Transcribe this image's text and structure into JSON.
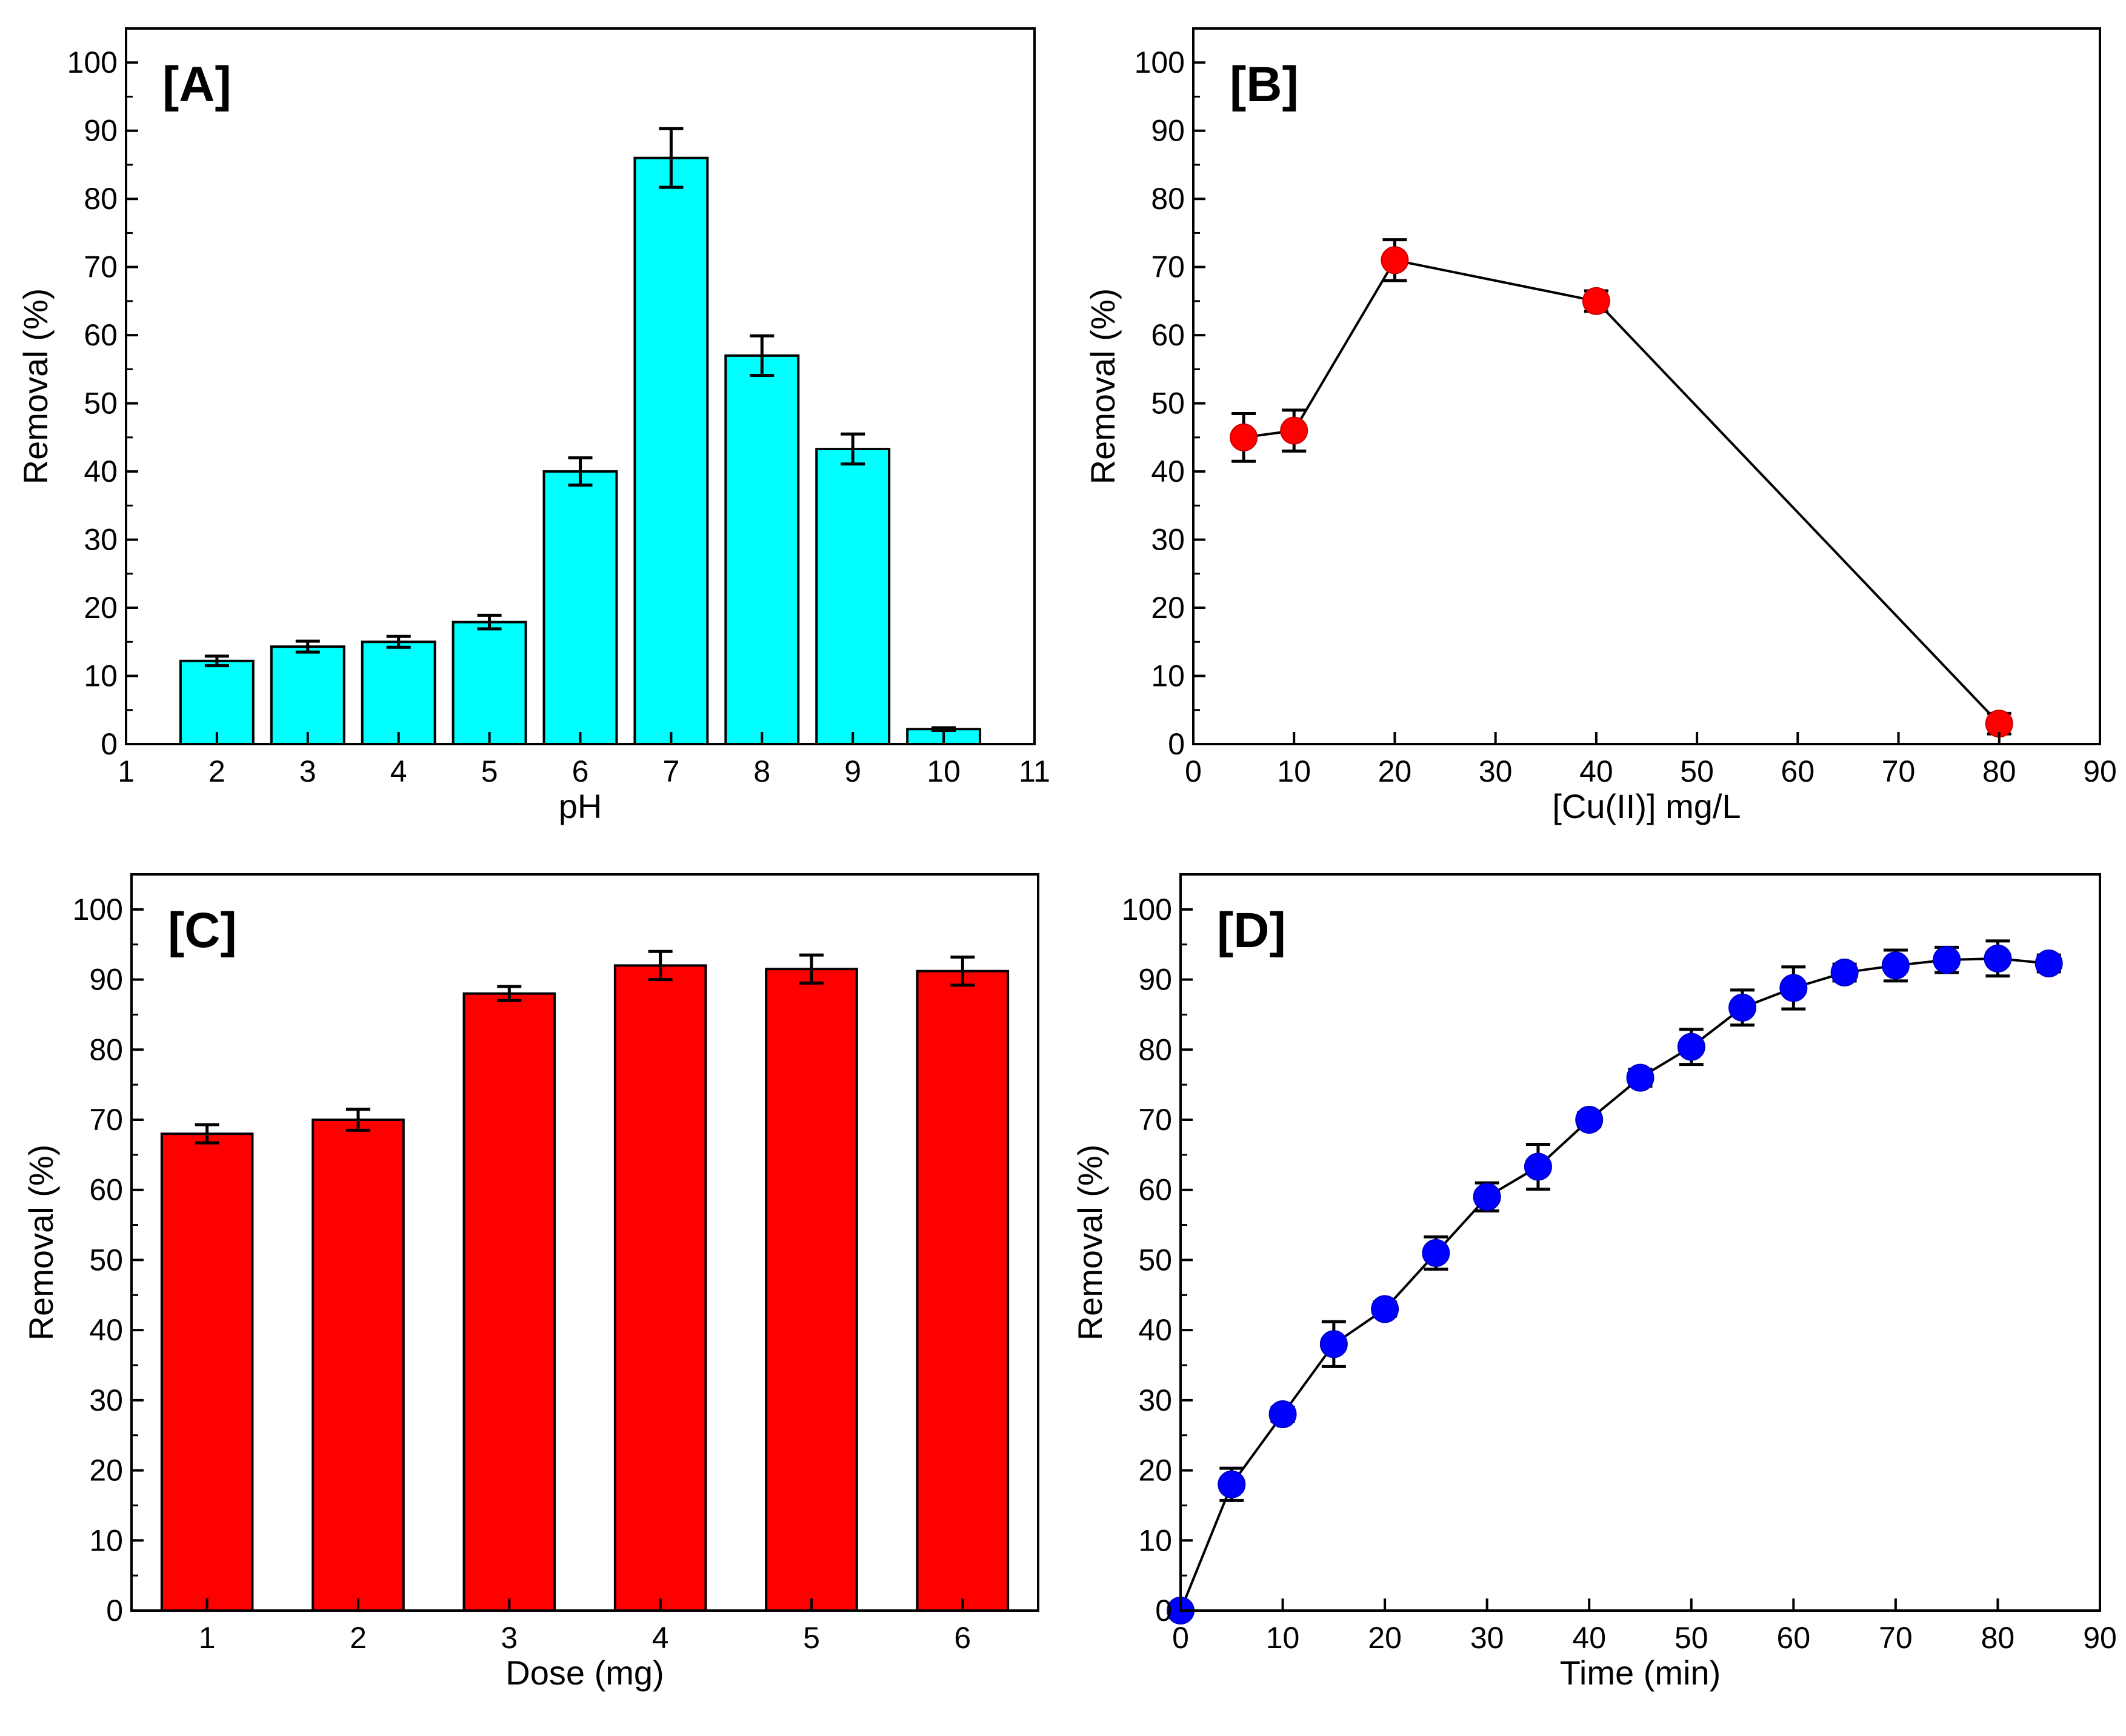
{
  "chart_data": [
    {
      "panel": "[A]",
      "type": "bar",
      "xlabel": "pH",
      "ylabel": "Removal (%)",
      "xlim": [
        1,
        11
      ],
      "ylim": [
        0,
        105
      ],
      "xticks": [
        1,
        2,
        3,
        4,
        5,
        6,
        7,
        8,
        9,
        10,
        11
      ],
      "yticks": [
        0,
        10,
        20,
        30,
        40,
        50,
        60,
        70,
        80,
        90,
        100
      ],
      "x": [
        2,
        3,
        4,
        5,
        6,
        7,
        8,
        9,
        10
      ],
      "values": [
        12.2,
        14.3,
        15.0,
        17.9,
        40.0,
        86.0,
        57.0,
        43.3,
        2.2
      ],
      "errors": [
        0.7,
        0.8,
        0.8,
        1.0,
        2.0,
        4.3,
        2.9,
        2.2,
        0.2
      ],
      "color": "#00FFFF",
      "grid": false
    },
    {
      "panel": "[B]",
      "type": "line",
      "xlabel": "[Cu(II)] mg/L",
      "ylabel": "Removal (%)",
      "xlim": [
        0,
        90
      ],
      "ylim": [
        0,
        105
      ],
      "xticks": [
        0,
        10,
        20,
        30,
        40,
        50,
        60,
        70,
        80,
        90
      ],
      "yticks": [
        0,
        10,
        20,
        30,
        40,
        50,
        60,
        70,
        80,
        90,
        100
      ],
      "x": [
        5,
        10,
        20,
        40,
        80
      ],
      "values": [
        45,
        46,
        71,
        65,
        3
      ],
      "errors": [
        3.5,
        3,
        3,
        1.5,
        1.5
      ],
      "color": "#FF0000",
      "grid": false
    },
    {
      "panel": "[C]",
      "type": "bar",
      "xlabel": "Dose (mg)",
      "ylabel": "Removal (%)",
      "xlim": [
        0.5,
        6.5
      ],
      "ylim": [
        0,
        105
      ],
      "xticks": [
        1,
        2,
        3,
        4,
        5,
        6
      ],
      "yticks": [
        0,
        10,
        20,
        30,
        40,
        50,
        60,
        70,
        80,
        90,
        100
      ],
      "x": [
        1,
        2,
        3,
        4,
        5,
        6
      ],
      "values": [
        68.0,
        70.0,
        88.0,
        92.0,
        91.5,
        91.2
      ],
      "errors": [
        1.3,
        1.5,
        1.0,
        2.0,
        2.0,
        2.0
      ],
      "color": "#FF0000",
      "grid": false
    },
    {
      "panel": "[D]",
      "type": "line",
      "xlabel": "Time (min)",
      "ylabel": "Removal (%)",
      "xlim": [
        0,
        90
      ],
      "ylim": [
        0,
        105
      ],
      "xticks": [
        0,
        10,
        20,
        30,
        40,
        50,
        60,
        70,
        80,
        90
      ],
      "yticks": [
        0,
        10,
        20,
        30,
        40,
        50,
        60,
        70,
        80,
        90,
        100
      ],
      "x": [
        0,
        5,
        10,
        15,
        20,
        25,
        30,
        35,
        40,
        45,
        50,
        55,
        60,
        65,
        70,
        75,
        80,
        85
      ],
      "values": [
        0,
        18,
        28,
        38,
        43,
        51,
        59,
        63.3,
        70,
        76,
        80.4,
        86,
        88.8,
        91,
        92,
        92.8,
        93,
        92.3
      ],
      "errors": [
        0,
        2.3,
        1,
        3.2,
        1,
        2.3,
        2,
        3.2,
        1,
        1.2,
        2.5,
        2.5,
        3,
        1.2,
        2.2,
        1.8,
        2.5,
        1.2
      ],
      "color": "#0000FF",
      "grid": false
    }
  ]
}
